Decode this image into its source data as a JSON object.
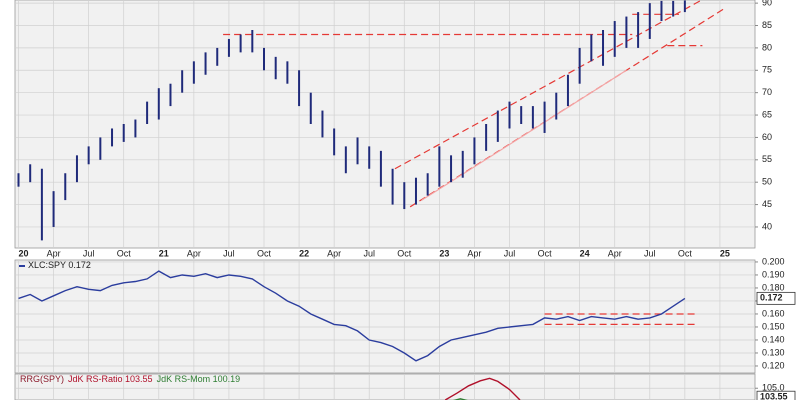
{
  "chart_data": [
    {
      "type": "range_bar",
      "color": "#1f2a7a",
      "x": [
        0,
        1,
        2,
        3,
        4,
        5,
        6,
        7,
        8,
        9,
        10,
        11,
        12,
        13,
        14,
        15,
        16,
        17,
        18,
        19,
        20,
        21,
        22,
        23,
        24,
        25,
        26,
        27,
        28,
        29,
        30,
        31,
        32,
        33,
        34,
        35,
        36,
        37,
        38,
        39,
        40,
        41,
        42,
        43,
        44,
        45,
        46,
        47,
        48,
        49,
        50,
        51,
        52,
        53,
        54,
        55,
        56,
        57
      ],
      "high": [
        52,
        54,
        53,
        48,
        52,
        56,
        58,
        60,
        62,
        63,
        64,
        68,
        71,
        72,
        75,
        77,
        79,
        80,
        82,
        83,
        84,
        80,
        78,
        77,
        75,
        70,
        66,
        62,
        58,
        60,
        58,
        57,
        53,
        50,
        51,
        52,
        58,
        56,
        57,
        60,
        63,
        66,
        68,
        67,
        67,
        68,
        70,
        74,
        80,
        83,
        84,
        86,
        87,
        88,
        90,
        90.5,
        90.5,
        90.6
      ],
      "low": [
        49,
        50,
        37,
        40,
        46,
        50,
        54,
        55,
        58,
        59,
        60,
        63,
        64,
        67,
        70,
        72,
        74,
        76,
        78,
        79,
        79,
        75,
        73,
        72,
        67,
        63,
        60,
        56,
        52,
        54,
        53,
        49,
        45,
        44,
        45,
        47,
        49,
        50,
        51,
        54,
        57,
        59,
        62,
        63,
        62,
        61,
        64,
        67,
        72,
        77,
        76,
        78,
        80,
        80,
        82,
        86,
        87,
        88
      ],
      "xlim": [
        -0.3,
        63
      ],
      "xticks": [
        {
          "value": 0,
          "label": "20"
        },
        {
          "value": 3,
          "label": "Apr"
        },
        {
          "value": 6,
          "label": "Jul"
        },
        {
          "value": 9,
          "label": "Oct"
        },
        {
          "value": 12,
          "label": "21"
        },
        {
          "value": 15,
          "label": "Apr"
        },
        {
          "value": 18,
          "label": "Jul"
        },
        {
          "value": 21,
          "label": "Oct"
        },
        {
          "value": 24,
          "label": "22"
        },
        {
          "value": 27,
          "label": "Apr"
        },
        {
          "value": 30,
          "label": "Jul"
        },
        {
          "value": 33,
          "label": "Oct"
        },
        {
          "value": 36,
          "label": "23"
        },
        {
          "value": 39,
          "label": "Apr"
        },
        {
          "value": 42,
          "label": "Jul"
        },
        {
          "value": 45,
          "label": "Oct"
        },
        {
          "value": 48,
          "label": "24"
        },
        {
          "value": 51,
          "label": "Apr"
        },
        {
          "value": 54,
          "label": "Jul"
        },
        {
          "value": 57,
          "label": "Oct"
        },
        {
          "value": 60,
          "label": "25"
        }
      ],
      "ylim": [
        35.3,
        90.7
      ],
      "yticks": [
        40,
        45,
        50,
        55,
        60,
        65,
        70,
        75,
        80,
        85,
        90
      ],
      "grid": true,
      "lines": [
        {
          "x": [
            17.5,
            52.5
          ],
          "y": [
            83,
            83
          ],
          "color": "#e53935",
          "dash": true
        },
        {
          "x": [
            32.2,
            59
          ],
          "y": [
            53,
            91.5
          ],
          "color": "#e53935",
          "dash": true
        },
        {
          "x": [
            33.5,
            60.5
          ],
          "y": [
            44.5,
            89
          ],
          "color": "#e53935",
          "dash": true
        },
        {
          "x": [
            34.5,
            52
          ],
          "y": [
            46,
            75
          ],
          "color": "#f4a6a6",
          "dash": false
        },
        {
          "x": [
            52.5,
            56.5
          ],
          "y": [
            87.5,
            87.5
          ],
          "color": "#e53935",
          "dash": true
        },
        {
          "x": [
            55.5,
            58.5
          ],
          "y": [
            80.5,
            80.5
          ],
          "color": "#e53935",
          "dash": true
        }
      ]
    },
    {
      "type": "line",
      "x": [
        0,
        1,
        2,
        3,
        4,
        5,
        6,
        7,
        8,
        9,
        10,
        11,
        12,
        13,
        14,
        15,
        16,
        17,
        18,
        19,
        20,
        21,
        22,
        23,
        24,
        25,
        26,
        27,
        28,
        29,
        30,
        31,
        32,
        33,
        34,
        35,
        36,
        37,
        38,
        39,
        40,
        41,
        42,
        43,
        44,
        45,
        46,
        47,
        48,
        49,
        50,
        51,
        52,
        53,
        54,
        55,
        56,
        57
      ],
      "series": [
        {
          "name": "XLC:SPY 0.172",
          "color": "#2b3d9e",
          "values": [
            0.172,
            0.175,
            0.17,
            0.174,
            0.178,
            0.181,
            0.179,
            0.178,
            0.182,
            0.184,
            0.185,
            0.187,
            0.193,
            0.188,
            0.19,
            0.189,
            0.191,
            0.188,
            0.19,
            0.189,
            0.187,
            0.181,
            0.176,
            0.17,
            0.166,
            0.16,
            0.156,
            0.152,
            0.151,
            0.147,
            0.14,
            0.138,
            0.135,
            0.13,
            0.124,
            0.128,
            0.135,
            0.14,
            0.142,
            0.144,
            0.146,
            0.149,
            0.15,
            0.151,
            0.152,
            0.157,
            0.156,
            0.158,
            0.155,
            0.158,
            0.157,
            0.156,
            0.158,
            0.156,
            0.157,
            0.16,
            0.166,
            0.172
          ]
        }
      ],
      "ylim": [
        0.1146,
        0.2015
      ],
      "yticks": [
        {
          "value": 0.12,
          "label": "0.120"
        },
        {
          "value": 0.13,
          "label": "0.130"
        },
        {
          "value": 0.14,
          "label": "0.140"
        },
        {
          "value": 0.15,
          "label": "0.150"
        },
        {
          "value": 0.16,
          "label": "0.160"
        },
        {
          "value": 0.17,
          "label": "0.170"
        },
        {
          "value": 0.18,
          "label": "0.180"
        },
        {
          "value": 0.19,
          "label": "0.190"
        },
        {
          "value": 0.2,
          "label": "0.200"
        }
      ],
      "grid": true,
      "last_value": {
        "value": 0.172,
        "label": "0.172"
      },
      "lines": [
        {
          "x": [
            45,
            58
          ],
          "y": [
            0.16,
            0.16
          ],
          "color": "#e53935",
          "dash": true
        },
        {
          "x": [
            45,
            58
          ],
          "y": [
            0.152,
            0.152
          ],
          "color": "#e53935",
          "dash": true
        }
      ]
    },
    {
      "type": "line",
      "title": "RRG(SPY)",
      "series": [
        {
          "name": "JdK RS-Ratio 103.55",
          "color": "#b0102a",
          "x": [
            36.5,
            37.5,
            38.5,
            39.5,
            40.3,
            41,
            42,
            42.9
          ],
          "values": [
            103.1,
            104.2,
            105.4,
            106.2,
            106.6,
            106.1,
            104.8,
            103.1
          ]
        },
        {
          "name": "JdK RS-Mom 100.19",
          "color": "#2e7d32",
          "x": [
            37.2,
            37.8,
            38.4
          ],
          "values": [
            103.0,
            103.3,
            103.0
          ]
        }
      ],
      "ylim": [
        103.1,
        107.3
      ],
      "yticks": [
        {
          "value": 105,
          "label": "105.0"
        }
      ],
      "grid": true,
      "last_value": {
        "value": 103.55,
        "label": "103.55"
      }
    }
  ]
}
